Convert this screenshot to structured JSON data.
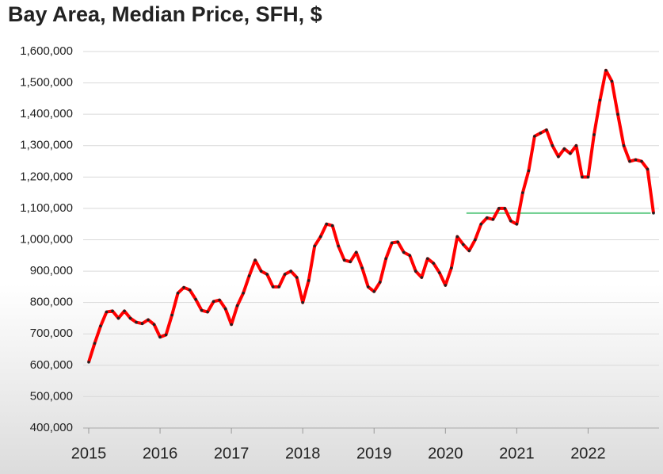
{
  "chart_data": {
    "type": "line",
    "title": "Bay Area, Median Price, SFH, $",
    "categories": [
      "2015",
      null,
      null,
      null,
      null,
      null,
      null,
      null,
      null,
      null,
      null,
      null,
      "2016",
      null,
      null,
      null,
      null,
      null,
      null,
      null,
      null,
      null,
      null,
      null,
      "2017",
      null,
      null,
      null,
      null,
      null,
      null,
      null,
      null,
      null,
      null,
      null,
      "2018",
      null,
      null,
      null,
      null,
      null,
      null,
      null,
      null,
      null,
      null,
      null,
      "2019",
      null,
      null,
      null,
      null,
      null,
      null,
      null,
      null,
      null,
      null,
      null,
      "2020",
      null,
      null,
      null,
      null,
      null,
      null,
      null,
      null,
      null,
      null,
      null,
      "2021",
      null,
      null,
      null,
      null,
      null,
      null,
      null,
      null,
      null,
      null,
      null,
      "2022",
      null,
      null,
      null,
      null,
      null,
      null,
      null,
      null,
      null,
      null,
      null
    ],
    "series": [
      {
        "color": "#ff0000",
        "marker_color": "#222222",
        "values": [
          610000,
          670000,
          725000,
          770000,
          773000,
          750000,
          773000,
          750000,
          737000,
          733000,
          745000,
          730000,
          690000,
          697000,
          760000,
          830000,
          848000,
          840000,
          810000,
          775000,
          770000,
          803000,
          808000,
          780000,
          730000,
          790000,
          830000,
          885000,
          935000,
          900000,
          890000,
          850000,
          850000,
          890000,
          900000,
          880000,
          800000,
          870000,
          980000,
          1010000,
          1050000,
          1045000,
          980000,
          935000,
          930000,
          960000,
          910000,
          850000,
          835000,
          865000,
          940000,
          990000,
          993000,
          960000,
          950000,
          900000,
          880000,
          940000,
          925000,
          895000,
          855000,
          910000,
          1010000,
          985000,
          965000,
          1000000,
          1050000,
          1070000,
          1065000,
          1100000,
          1100000,
          1060000,
          1050000,
          1150000,
          1220000,
          1330000,
          1340000,
          1350000,
          1300000,
          1265000,
          1290000,
          1275000,
          1300000,
          1200000,
          1200000,
          1335000,
          1445000,
          1540000,
          1505000,
          1400000,
          1300000,
          1250000,
          1255000,
          1250000,
          1225000,
          1085000
        ]
      }
    ],
    "reference_line": {
      "value": 1085000,
      "x_start": 63,
      "x_end": 94,
      "color": "#66cc88"
    },
    "ylim": [
      400000,
      1600000
    ],
    "yticks": [
      {
        "value": 400000,
        "label": "400,000"
      },
      {
        "value": 500000,
        "label": "500,000"
      },
      {
        "value": 600000,
        "label": "600,000"
      },
      {
        "value": 700000,
        "label": "700,000"
      },
      {
        "value": 800000,
        "label": "800,000"
      },
      {
        "value": 900000,
        "label": "900,000"
      },
      {
        "value": 1000000,
        "label": "1,000,000"
      },
      {
        "value": 1100000,
        "label": "1,100,000"
      },
      {
        "value": 1200000,
        "label": "1,200,000"
      },
      {
        "value": 1300000,
        "label": "1,300,000"
      },
      {
        "value": 1400000,
        "label": "1,400,000"
      },
      {
        "value": 1500000,
        "label": "1,500,000"
      },
      {
        "value": 1600000,
        "label": "1,600,000"
      }
    ],
    "grid": true
  }
}
